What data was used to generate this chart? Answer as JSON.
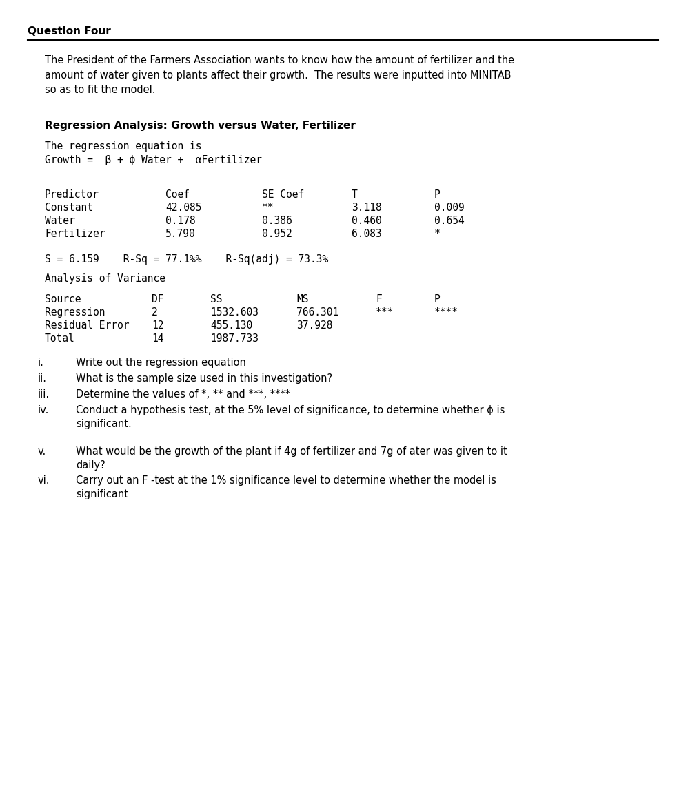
{
  "title": "Question Four",
  "intro_text": "The President of the Farmers Association wants to know how the amount of fertilizer and the\namount of water given to plants affect their growth.  The results were inputted into MINITAB\nso as to fit the model.",
  "regression_heading": "Regression Analysis: Growth versus Water, Fertilizer",
  "reg_eq_line1": "The regression equation is",
  "reg_eq_line2": "Growth =  β + ϕ Water +  αFertilizer",
  "table1_headers": [
    "Predictor",
    "Coef",
    "SE Coef",
    "T",
    "P"
  ],
  "table1_rows": [
    [
      "Constant",
      "42.085",
      "**",
      "3.118",
      "0.009"
    ],
    [
      "Water",
      "0.178",
      "0.386",
      "0.460",
      "0.654"
    ],
    [
      "Fertilizer",
      "5.790",
      "0.952",
      "6.083",
      "*"
    ]
  ],
  "stats_line": "S = 6.159    R-Sq = 77.1%%    R-Sq(adj) = 73.3%",
  "anova_heading": "Analysis of Variance",
  "table2_headers": [
    "Source",
    "DF",
    "SS",
    "MS",
    "F",
    "P"
  ],
  "table2_rows": [
    [
      "Regression",
      "2",
      "1532.603",
      "766.301",
      "***",
      "****"
    ],
    [
      "Residual Error",
      "12",
      "455.130",
      "37.928",
      "",
      ""
    ],
    [
      "Total",
      "14",
      "1987.733",
      "",
      "",
      ""
    ]
  ],
  "questions": [
    [
      "i.",
      "Write out the regression equation"
    ],
    [
      "ii.",
      "What is the sample size used in this investigation?"
    ],
    [
      "iii.",
      "Determine the values of *, ** and ***, ****"
    ],
    [
      "iv.",
      "Conduct a hypothesis test, at the 5% level of significance, to determine whether ϕ is\nsignificant."
    ],
    [
      "v.",
      "What would be the growth of the plant if 4g of fertilizer and 7g of ater was given to it\ndaily?"
    ],
    [
      "vi.",
      "Carry out an F -test at the 1% significance level to determine whether the model is\nsignificant"
    ]
  ],
  "bg_color": "#ffffff",
  "text_color": "#000000",
  "mono_font": "DejaVu Sans Mono",
  "sans_font": "DejaVu Sans"
}
